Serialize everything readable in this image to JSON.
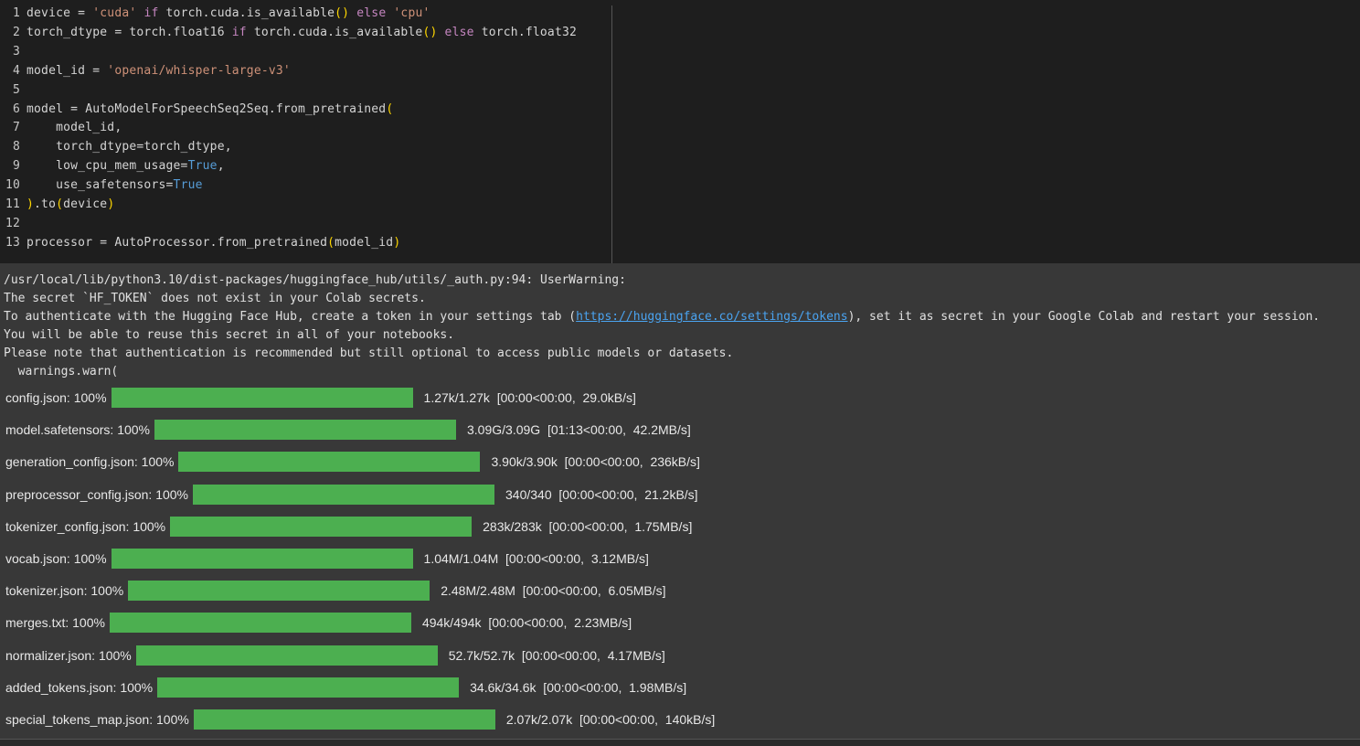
{
  "code_lines": [
    [
      "1",
      [
        [
          "device = ",
          ""
        ],
        [
          "'cuda'",
          "s"
        ],
        [
          " if ",
          "k"
        ],
        [
          "torch.cuda.is_available",
          ""
        ],
        [
          "()",
          "p"
        ],
        [
          " else ",
          "k"
        ],
        [
          "'cpu'",
          "s"
        ]
      ]
    ],
    [
      "2",
      [
        [
          "torch_dtype = torch.float16 ",
          ""
        ],
        [
          "if",
          "k"
        ],
        [
          " torch.cuda.is_available",
          ""
        ],
        [
          "()",
          "p"
        ],
        [
          " else ",
          "k"
        ],
        [
          "torch.float32",
          ""
        ]
      ]
    ],
    [
      "3",
      []
    ],
    [
      "4",
      [
        [
          "model_id = ",
          ""
        ],
        [
          "'openai/whisper-large-v3'",
          "s"
        ]
      ]
    ],
    [
      "5",
      []
    ],
    [
      "6",
      [
        [
          "model = AutoModelForSpeechSeq2Seq.from_pretrained",
          ""
        ],
        [
          "(",
          "p"
        ]
      ]
    ],
    [
      "7",
      [
        [
          "    model_id,",
          ""
        ]
      ]
    ],
    [
      "8",
      [
        [
          "    torch_dtype=torch_dtype,",
          ""
        ]
      ]
    ],
    [
      "9",
      [
        [
          "    low_cpu_mem_usage=",
          ""
        ],
        [
          "True",
          "b"
        ],
        [
          ",",
          ""
        ]
      ]
    ],
    [
      "10",
      [
        [
          "    use_safetensors=",
          ""
        ],
        [
          "True",
          "b"
        ]
      ]
    ],
    [
      "11",
      [
        [
          ")",
          "p"
        ],
        [
          ".to",
          ""
        ],
        [
          "(",
          "p"
        ],
        [
          "device",
          ""
        ],
        [
          ")",
          "p"
        ]
      ]
    ],
    [
      "12",
      []
    ],
    [
      "13",
      [
        [
          "processor = AutoProcessor.from_pretrained",
          ""
        ],
        [
          "(",
          "p"
        ],
        [
          "model_id",
          ""
        ],
        [
          ")",
          "p"
        ]
      ]
    ]
  ],
  "output": {
    "line1": "/usr/local/lib/python3.10/dist-packages/huggingface_hub/utils/_auth.py:94: UserWarning: ",
    "line2": "The secret `HF_TOKEN` does not exist in your Colab secrets.",
    "line3_pre": "To authenticate with the Hugging Face Hub, create a token in your settings tab (",
    "line3_link": "https://huggingface.co/settings/tokens",
    "line3_post": "), set it as secret in your Google Colab and restart your session.",
    "line4": "You will be able to reuse this secret in all of your notebooks.",
    "line5": "Please note that authentication is recommended but still optional to access public models or datasets.",
    "line6": "  warnings.warn("
  },
  "progress_color": "#4caf50",
  "downloads": [
    {
      "file": "config.json:",
      "pct": "100%",
      "progress": 1.0,
      "stats": "1.27k/1.27k  [00:00<00:00,  29.0kB/s]"
    },
    {
      "file": "model.safetensors:",
      "pct": "100%",
      "progress": 1.0,
      "stats": "3.09G/3.09G  [01:13<00:00,  42.2MB/s]"
    },
    {
      "file": "generation_config.json:",
      "pct": "100%",
      "progress": 1.0,
      "stats": "3.90k/3.90k  [00:00<00:00,  236kB/s]"
    },
    {
      "file": "preprocessor_config.json:",
      "pct": "100%",
      "progress": 1.0,
      "stats": "340/340  [00:00<00:00,  21.2kB/s]"
    },
    {
      "file": "tokenizer_config.json:",
      "pct": "100%",
      "progress": 1.0,
      "stats": "283k/283k  [00:00<00:00,  1.75MB/s]"
    },
    {
      "file": "vocab.json:",
      "pct": "100%",
      "progress": 1.0,
      "stats": "1.04M/1.04M  [00:00<00:00,  3.12MB/s]"
    },
    {
      "file": "tokenizer.json:",
      "pct": "100%",
      "progress": 1.0,
      "stats": "2.48M/2.48M  [00:00<00:00,  6.05MB/s]"
    },
    {
      "file": "merges.txt:",
      "pct": "100%",
      "progress": 1.0,
      "stats": "494k/494k  [00:00<00:00,  2.23MB/s]"
    },
    {
      "file": "normalizer.json:",
      "pct": "100%",
      "progress": 1.0,
      "stats": "52.7k/52.7k  [00:00<00:00,  4.17MB/s]"
    },
    {
      "file": "added_tokens.json:",
      "pct": "100%",
      "progress": 1.0,
      "stats": "34.6k/34.6k  [00:00<00:00,  1.98MB/s]"
    },
    {
      "file": "special_tokens_map.json:",
      "pct": "100%",
      "progress": 1.0,
      "stats": "2.07k/2.07k  [00:00<00:00,  140kB/s]"
    }
  ]
}
